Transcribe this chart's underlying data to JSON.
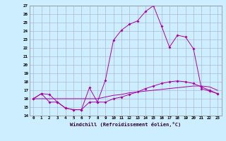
{
  "xlabel": "Windchill (Refroidissement éolien,°C)",
  "x": [
    0,
    1,
    2,
    3,
    4,
    5,
    6,
    7,
    8,
    9,
    10,
    11,
    12,
    13,
    14,
    15,
    16,
    17,
    18,
    19,
    20,
    21,
    22,
    23
  ],
  "line1": [
    16.0,
    16.6,
    16.5,
    15.6,
    14.9,
    14.7,
    14.7,
    17.3,
    15.6,
    18.2,
    22.9,
    24.1,
    24.8,
    25.2,
    26.3,
    27.0,
    24.6,
    22.1,
    23.5,
    23.3,
    21.9,
    17.2,
    16.9,
    16.6
  ],
  "line2": [
    16.0,
    16.6,
    15.6,
    15.6,
    14.9,
    14.7,
    14.7,
    15.6,
    15.6,
    15.6,
    16.0,
    16.2,
    16.5,
    16.8,
    17.2,
    17.5,
    17.8,
    18.0,
    18.1,
    18.0,
    17.8,
    17.4,
    17.0,
    16.6
  ],
  "line3": [
    16.0,
    16.0,
    16.0,
    16.0,
    16.0,
    16.0,
    16.0,
    16.0,
    16.0,
    16.2,
    16.4,
    16.5,
    16.7,
    16.8,
    16.9,
    17.0,
    17.1,
    17.2,
    17.3,
    17.4,
    17.5,
    17.5,
    17.4,
    17.0
  ],
  "ylim": [
    14,
    27
  ],
  "xlim": [
    -0.5,
    23.5
  ],
  "yticks": [
    14,
    15,
    16,
    17,
    18,
    19,
    20,
    21,
    22,
    23,
    24,
    25,
    26,
    27
  ],
  "xticks": [
    0,
    1,
    2,
    3,
    4,
    5,
    6,
    7,
    8,
    9,
    10,
    11,
    12,
    13,
    14,
    15,
    16,
    17,
    18,
    19,
    20,
    21,
    22,
    23
  ],
  "line_color": "#aa00aa",
  "bg_color": "#cceeff",
  "grid_color": "#aaaacc",
  "markersize": 2.0
}
